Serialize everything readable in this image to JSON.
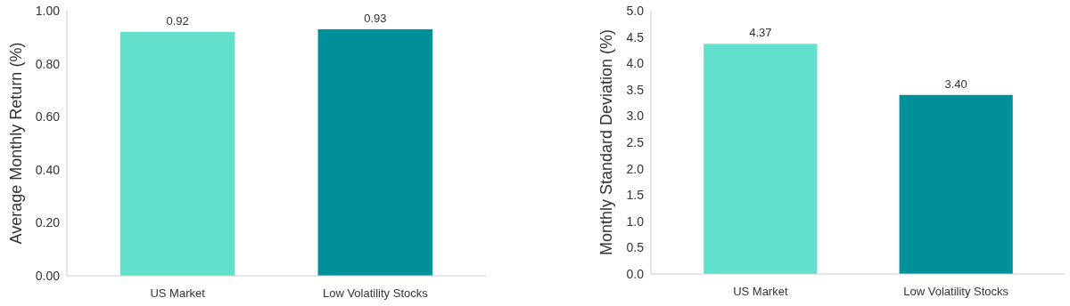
{
  "chart_data": [
    {
      "type": "bar",
      "ylabel": "Average Monthly Return (%)",
      "categories": [
        "US Market",
        "Low Volatility Stocks"
      ],
      "values": [
        0.92,
        0.93
      ],
      "colors": [
        "#62e0cb",
        "#00909a"
      ],
      "value_labels": [
        "0.92",
        "0.93"
      ],
      "ylim": [
        0,
        1
      ],
      "yticks": [
        {
          "value": 0,
          "label": "0.00"
        },
        {
          "value": 0.2,
          "label": "0.20"
        },
        {
          "value": 0.4,
          "label": "0.40"
        },
        {
          "value": 0.6,
          "label": "0.60"
        },
        {
          "value": 0.8,
          "label": "0.80"
        },
        {
          "value": 1,
          "label": "1.00"
        }
      ],
      "grid": false
    },
    {
      "type": "bar",
      "ylabel": "Monthly Standard Deviation  (%)",
      "categories": [
        "US Market",
        "Low Volatility Stocks"
      ],
      "values": [
        4.37,
        3.4
      ],
      "colors": [
        "#62e0cb",
        "#00909a"
      ],
      "value_labels": [
        "4.37",
        "3.40"
      ],
      "ylim": [
        0,
        5
      ],
      "yticks": [
        {
          "value": 0,
          "label": "0.0"
        },
        {
          "value": 0.5,
          "label": "0.5"
        },
        {
          "value": 1,
          "label": "1.0"
        },
        {
          "value": 1.5,
          "label": "1.5"
        },
        {
          "value": 2,
          "label": "2.0"
        },
        {
          "value": 2.5,
          "label": "2.5"
        },
        {
          "value": 3,
          "label": "3.0"
        },
        {
          "value": 3.5,
          "label": "3.5"
        },
        {
          "value": 4,
          "label": "4.0"
        },
        {
          "value": 4.5,
          "label": "4.5"
        },
        {
          "value": 5,
          "label": "5.0"
        }
      ],
      "grid": false
    }
  ]
}
